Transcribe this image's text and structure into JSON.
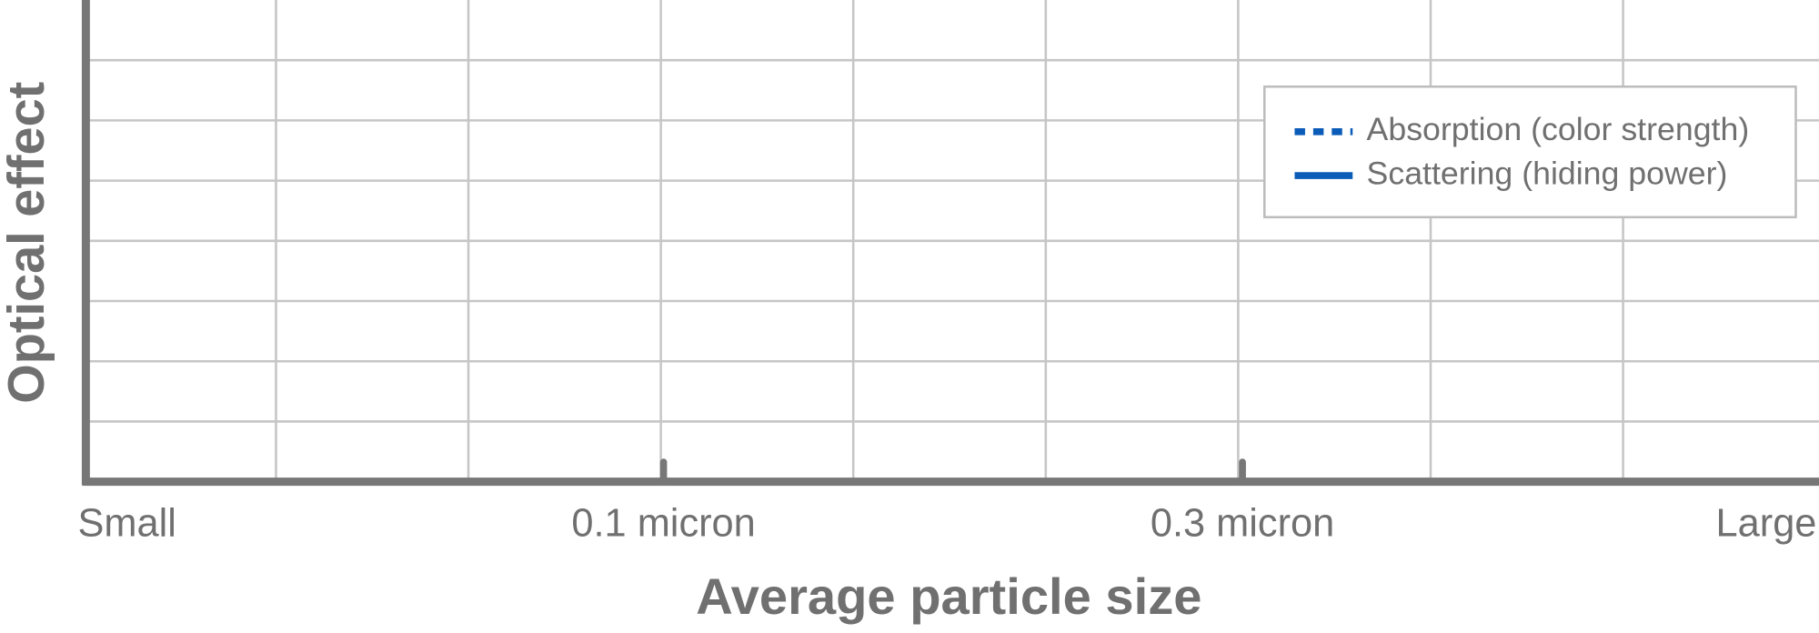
{
  "chart_data": {
    "type": "line",
    "x_label": "Average particle size",
    "y_label": "Optical effect",
    "x_tick_labels": [
      "Small",
      "0.1 micron",
      "0.3 micron",
      "Large"
    ],
    "grid": true,
    "legend": "upper right",
    "series": [
      {
        "name": "Absorption (color strength)",
        "color": "#0a5cb8",
        "style": "dotted"
      },
      {
        "name": "Scattering (hiding power)",
        "color": "#0a5cb8",
        "style": "solid"
      }
    ]
  }
}
